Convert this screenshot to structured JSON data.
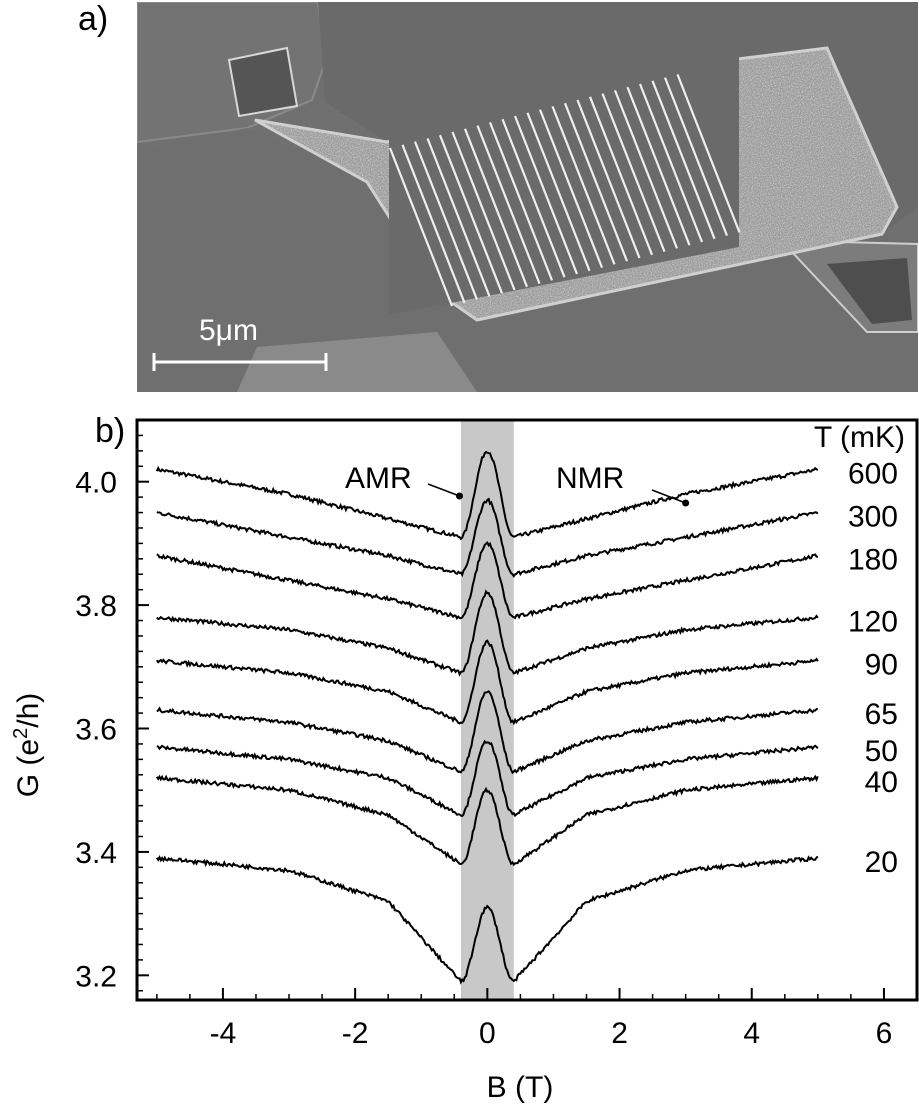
{
  "panel_a": {
    "label": "a)",
    "scale_bar_label": "5μm"
  },
  "panel_b": {
    "label": "b)"
  },
  "chart_data": {
    "type": "line",
    "title": "",
    "xlabel": "B (T)",
    "ylabel_prefix": "G (e",
    "ylabel_sup": "2",
    "ylabel_suffix": "/h)",
    "xlim": [
      -5.3,
      6.5
    ],
    "ylim": [
      3.16,
      4.1
    ],
    "x_ticks": [
      -4,
      -2,
      0,
      2,
      4,
      6
    ],
    "y_ticks": [
      3.2,
      3.4,
      3.6,
      3.8,
      4.0
    ],
    "grid": false,
    "legend_title": "T (mK)",
    "shaded_band": {
      "x_from": -0.4,
      "x_to": 0.4,
      "color": "#c8c8c8"
    },
    "annotations": [
      {
        "text": "AMR",
        "x": -0.3,
        "y": 4.0
      },
      {
        "text": "NMR",
        "x": 3.0,
        "y": 4.0
      }
    ],
    "series": [
      {
        "name": "600",
        "values_at": [
          [
            -5,
            4.02
          ],
          [
            -3,
            3.98
          ],
          [
            -1.5,
            3.94
          ],
          [
            -0.4,
            3.91
          ],
          [
            0,
            4.05
          ],
          [
            0.4,
            3.91
          ],
          [
            1.5,
            3.94
          ],
          [
            3,
            3.98
          ],
          [
            5,
            4.02
          ]
        ]
      },
      {
        "name": "300",
        "values_at": [
          [
            -5,
            3.95
          ],
          [
            -3,
            3.91
          ],
          [
            -1.5,
            3.88
          ],
          [
            -0.4,
            3.85
          ],
          [
            0,
            3.97
          ],
          [
            0.4,
            3.85
          ],
          [
            1.5,
            3.88
          ],
          [
            3,
            3.91
          ],
          [
            5,
            3.95
          ]
        ]
      },
      {
        "name": "180",
        "values_at": [
          [
            -5,
            3.88
          ],
          [
            -3,
            3.84
          ],
          [
            -1.5,
            3.81
          ],
          [
            -0.4,
            3.78
          ],
          [
            0,
            3.9
          ],
          [
            0.4,
            3.78
          ],
          [
            1.5,
            3.81
          ],
          [
            3,
            3.84
          ],
          [
            5,
            3.88
          ]
        ]
      },
      {
        "name": "120",
        "values_at": [
          [
            -5,
            3.78
          ],
          [
            -3,
            3.76
          ],
          [
            -1.5,
            3.73
          ],
          [
            -0.4,
            3.69
          ],
          [
            0,
            3.82
          ],
          [
            0.4,
            3.69
          ],
          [
            1.5,
            3.73
          ],
          [
            3,
            3.76
          ],
          [
            5,
            3.78
          ]
        ]
      },
      {
        "name": "90",
        "values_at": [
          [
            -5,
            3.71
          ],
          [
            -3,
            3.69
          ],
          [
            -1.5,
            3.66
          ],
          [
            -0.4,
            3.61
          ],
          [
            0,
            3.74
          ],
          [
            0.4,
            3.61
          ],
          [
            1.5,
            3.66
          ],
          [
            3,
            3.69
          ],
          [
            5,
            3.71
          ]
        ]
      },
      {
        "name": "65",
        "values_at": [
          [
            -5,
            3.63
          ],
          [
            -3,
            3.61
          ],
          [
            -1.5,
            3.58
          ],
          [
            -0.4,
            3.53
          ],
          [
            0,
            3.66
          ],
          [
            0.4,
            3.53
          ],
          [
            1.5,
            3.58
          ],
          [
            3,
            3.61
          ],
          [
            5,
            3.63
          ]
        ]
      },
      {
        "name": "50",
        "values_at": [
          [
            -5,
            3.57
          ],
          [
            -3,
            3.55
          ],
          [
            -1.5,
            3.52
          ],
          [
            -0.4,
            3.46
          ],
          [
            0,
            3.58
          ],
          [
            0.4,
            3.46
          ],
          [
            1.5,
            3.52
          ],
          [
            3,
            3.55
          ],
          [
            5,
            3.57
          ]
        ]
      },
      {
        "name": "40",
        "values_at": [
          [
            -5,
            3.52
          ],
          [
            -3,
            3.5
          ],
          [
            -1.5,
            3.46
          ],
          [
            -0.4,
            3.38
          ],
          [
            0,
            3.5
          ],
          [
            0.4,
            3.38
          ],
          [
            1.5,
            3.46
          ],
          [
            3,
            3.5
          ],
          [
            5,
            3.52
          ]
        ]
      },
      {
        "name": "20",
        "values_at": [
          [
            -5,
            3.39
          ],
          [
            -3,
            3.37
          ],
          [
            -1.5,
            3.32
          ],
          [
            -0.4,
            3.19
          ],
          [
            0,
            3.31
          ],
          [
            0.4,
            3.19
          ],
          [
            1.5,
            3.32
          ],
          [
            3,
            3.37
          ],
          [
            5,
            3.39
          ]
        ]
      }
    ]
  }
}
